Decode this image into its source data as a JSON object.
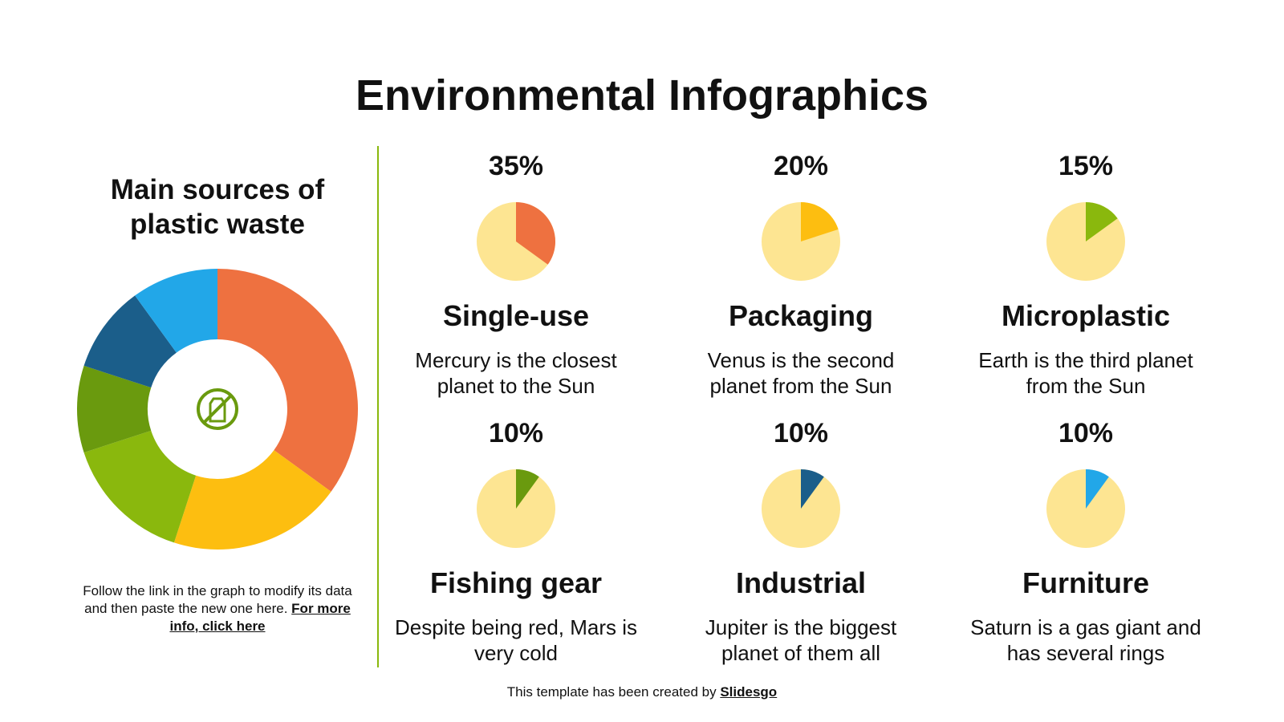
{
  "title": "Environmental Infographics",
  "chart_data": {
    "type": "donut",
    "title": "Main sources of plastic waste",
    "categories": [
      "Single-use",
      "Packaging",
      "Microplastic",
      "Fishing gear",
      "Industrial",
      "Furniture"
    ],
    "values": [
      35,
      20,
      15,
      10,
      10,
      10
    ],
    "value_labels": [
      "35%",
      "20%",
      "15%",
      "10%",
      "10%",
      "10%"
    ],
    "colors": [
      "#ee7140",
      "#fdbe10",
      "#8ab80d",
      "#6a9a0e",
      "#1b5e8a",
      "#22a7e8"
    ]
  },
  "descriptions": [
    "Mercury is the closest planet to the Sun",
    "Venus is the second planet from the Sun",
    "Earth is the third planet from the Sun",
    "Despite being red, Mars is very cold",
    "Jupiter is the biggest planet of them all",
    "Saturn is a gas giant and has several rings"
  ],
  "note": {
    "text": "Follow the link in the graph to modify its data and then paste the new one here.",
    "link": "For more info, click here"
  },
  "footer": {
    "text": "This template has been created by",
    "link": "Slidesgo"
  }
}
